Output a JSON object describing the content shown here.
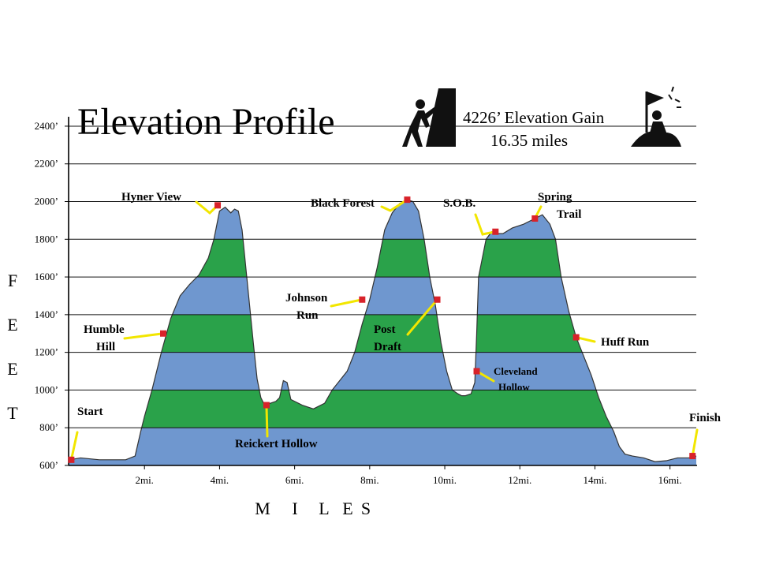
{
  "chart_data": {
    "type": "area",
    "title": "Elevation Profile",
    "stats": {
      "gain": "4226’ Elevation Gain",
      "distance": "16.35 miles"
    },
    "ylabel": "FEET",
    "ylabel_letters": [
      "F",
      "E",
      "E",
      "T"
    ],
    "xlabel": "MILES",
    "xlabel_letters": [
      "M",
      "I",
      "L",
      "E",
      "S"
    ],
    "xlim": [
      0,
      16.7
    ],
    "ylim": [
      600,
      2450
    ],
    "y_ticks": [
      {
        "value": 600,
        "label": "600’"
      },
      {
        "value": 800,
        "label": "800’"
      },
      {
        "value": 1000,
        "label": "1000’"
      },
      {
        "value": 1200,
        "label": "1200’"
      },
      {
        "value": 1400,
        "label": "1400’"
      },
      {
        "value": 1600,
        "label": "1600’"
      },
      {
        "value": 1800,
        "label": "1800’"
      },
      {
        "value": 2000,
        "label": "2000’"
      },
      {
        "value": 2200,
        "label": "2200’"
      },
      {
        "value": 2400,
        "label": "2400’"
      }
    ],
    "x_ticks": [
      {
        "value": 2,
        "label": "2mi."
      },
      {
        "value": 4,
        "label": "4mi."
      },
      {
        "value": 6,
        "label": "6mi."
      },
      {
        "value": 8,
        "label": "8mi."
      },
      {
        "value": 10,
        "label": "10mi."
      },
      {
        "value": 12,
        "label": "12mi."
      },
      {
        "value": 14,
        "label": "14mi."
      },
      {
        "value": 16,
        "label": "16mi."
      }
    ],
    "grid": true,
    "bands": {
      "step": 200,
      "colors": [
        "#6f97cf",
        "#2aa24a"
      ]
    },
    "profile": {
      "x": [
        0,
        0.3,
        0.8,
        1.5,
        1.75,
        1.9,
        2.0,
        2.2,
        2.45,
        2.7,
        2.95,
        3.2,
        3.45,
        3.7,
        3.85,
        4.0,
        4.15,
        4.3,
        4.4,
        4.5,
        4.6,
        4.75,
        4.9,
        5.0,
        5.1,
        5.2,
        5.35,
        5.5,
        5.6,
        5.7,
        5.8,
        5.9,
        6.0,
        6.2,
        6.5,
        6.8,
        7.0,
        7.2,
        7.4,
        7.6,
        7.8,
        8.0,
        8.2,
        8.4,
        8.6,
        8.8,
        9.0,
        9.15,
        9.3,
        9.45,
        9.6,
        9.75,
        9.9,
        10.05,
        10.2,
        10.35,
        10.45,
        10.55,
        10.7,
        10.8,
        10.85,
        10.9,
        11.0,
        11.1,
        11.25,
        11.4,
        11.55,
        11.8,
        12.1,
        12.4,
        12.6,
        12.8,
        12.95,
        13.1,
        13.3,
        13.5,
        13.7,
        13.9,
        14.1,
        14.3,
        14.5,
        14.65,
        14.8,
        15.0,
        15.3,
        15.6,
        15.9,
        16.2,
        16.5,
        16.7
      ],
      "y": [
        630,
        640,
        630,
        630,
        650,
        780,
        860,
        1000,
        1200,
        1380,
        1500,
        1560,
        1610,
        1700,
        1800,
        1950,
        1970,
        1940,
        1960,
        1950,
        1850,
        1550,
        1250,
        1060,
        960,
        920,
        930,
        940,
        960,
        1050,
        1040,
        950,
        940,
        920,
        900,
        930,
        1000,
        1050,
        1100,
        1200,
        1350,
        1480,
        1650,
        1850,
        1940,
        1990,
        2010,
        2000,
        1950,
        1800,
        1600,
        1450,
        1250,
        1100,
        1000,
        980,
        970,
        970,
        980,
        1040,
        1300,
        1600,
        1700,
        1800,
        1840,
        1830,
        1830,
        1860,
        1880,
        1910,
        1930,
        1880,
        1800,
        1600,
        1420,
        1280,
        1180,
        1080,
        960,
        860,
        780,
        700,
        660,
        650,
        640,
        620,
        625,
        640,
        640,
        650
      ]
    },
    "landmarks": [
      {
        "name": "Start",
        "x": 0.05,
        "y": 630
      },
      {
        "name": "Humble Hill",
        "x": 2.5,
        "y": 1300
      },
      {
        "name": "Hyner View",
        "x": 3.95,
        "y": 1980
      },
      {
        "name": "Reickert Hollow",
        "x": 5.25,
        "y": 920
      },
      {
        "name": "Johnson Run",
        "x": 7.8,
        "y": 1480
      },
      {
        "name": "Black Forest",
        "x": 9.0,
        "y": 2010
      },
      {
        "name": "Post Draft",
        "x": 9.8,
        "y": 1480
      },
      {
        "name": "Cleveland Hollow",
        "x": 10.85,
        "y": 1100
      },
      {
        "name": "S.O.B.",
        "x": 11.35,
        "y": 1840
      },
      {
        "name": "Spring Trail",
        "x": 12.4,
        "y": 1910
      },
      {
        "name": "Huff Run",
        "x": 13.5,
        "y": 1280
      },
      {
        "name": "Finish",
        "x": 16.6,
        "y": 650
      }
    ],
    "colors": {
      "marker": "#d8222a",
      "leader": "#f2e600",
      "gridline": "#111111",
      "outline": "#333333"
    },
    "icons": [
      "climber-icon",
      "summit-flag-icon"
    ]
  }
}
